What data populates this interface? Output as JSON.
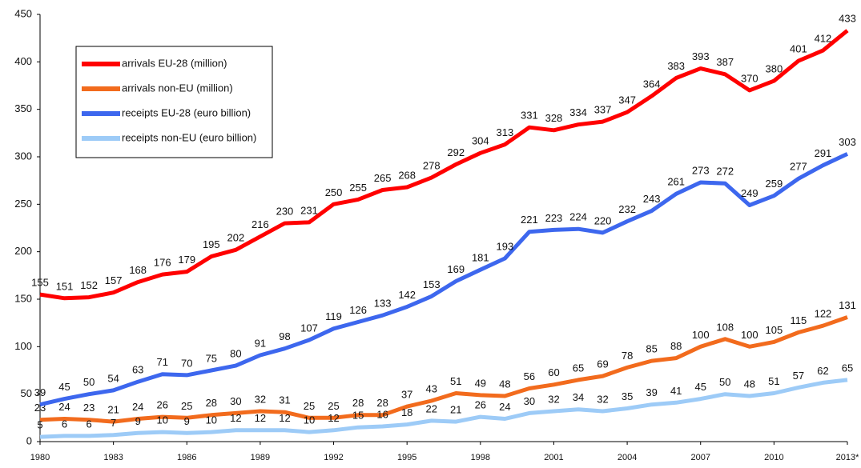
{
  "chart_data": {
    "type": "line",
    "categories": [
      "1980",
      null,
      null,
      "1983",
      null,
      null,
      "1986",
      null,
      null,
      "1989",
      null,
      null,
      "1992",
      null,
      null,
      "1995",
      null,
      null,
      "1998",
      null,
      null,
      "2001",
      null,
      null,
      "2004",
      null,
      null,
      "2007",
      null,
      null,
      "2010",
      null,
      null,
      "2013*"
    ],
    "series": [
      {
        "name": "arrivals EU-28 (million)",
        "color": "#ff0000",
        "values": [
          155,
          151,
          152,
          157,
          168,
          176,
          179,
          195,
          202,
          216,
          230,
          231,
          250,
          255,
          265,
          268,
          278,
          292,
          304,
          313,
          331,
          328,
          334,
          337,
          347,
          364,
          383,
          393,
          387,
          370,
          380,
          401,
          412,
          433
        ]
      },
      {
        "name": "arrivals non-EU (million)",
        "color": "#f26b1d",
        "values": [
          23,
          24,
          23,
          21,
          24,
          26,
          25,
          28,
          30,
          32,
          31,
          25,
          25,
          28,
          28,
          37,
          43,
          51,
          49,
          48,
          56,
          60,
          65,
          69,
          78,
          85,
          88,
          100,
          108,
          100,
          105,
          115,
          122,
          131
        ]
      },
      {
        "name": "receipts EU-28 (euro billion)",
        "color": "#3d67ee",
        "values": [
          39,
          45,
          50,
          54,
          63,
          71,
          70,
          75,
          80,
          91,
          98,
          107,
          119,
          126,
          133,
          142,
          153,
          169,
          181,
          193,
          221,
          223,
          224,
          220,
          232,
          243,
          261,
          273,
          272,
          249,
          259,
          277,
          291,
          303
        ]
      },
      {
        "name": "receipts non-EU (euro billion)",
        "color": "#9dcbf7",
        "values": [
          5,
          6,
          6,
          7,
          9,
          10,
          9,
          10,
          12,
          12,
          12,
          10,
          12,
          15,
          16,
          18,
          22,
          21,
          26,
          24,
          30,
          32,
          34,
          32,
          35,
          39,
          41,
          45,
          50,
          48,
          51,
          57,
          62,
          65
        ]
      }
    ],
    "ylim": [
      0,
      450
    ],
    "yticks": [
      0,
      50,
      100,
      150,
      200,
      250,
      300,
      350,
      400,
      450
    ],
    "grid": false
  }
}
